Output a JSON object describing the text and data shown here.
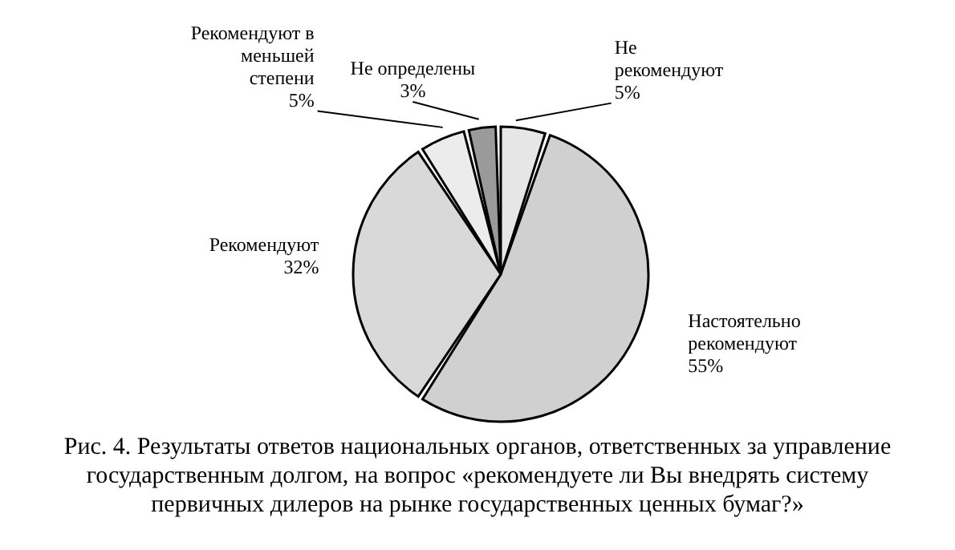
{
  "chart_data": {
    "type": "pie",
    "categories": [
      "Не рекомендуют",
      "Настоятельно рекомендуют",
      "Рекомендуют",
      "Рекомендуют в меньшей степени",
      "Не определены"
    ],
    "values": [
      5,
      55,
      32,
      5,
      3
    ],
    "value_labels": [
      "5%",
      "55%",
      "32%",
      "5%",
      "3%"
    ],
    "colors": [
      "#e6e6e6",
      "#d0d0d0",
      "#d9d9d9",
      "#ececec",
      "#9a9a9a"
    ],
    "annotations": [
      "Рис. 4. Результаты ответов национальных органов, ответственных за управление государственным долгом, на вопрос «рекомендуете ли Вы внедрять систему первичных дилеров на рынке государственных ценных бумаг?»"
    ]
  }
}
